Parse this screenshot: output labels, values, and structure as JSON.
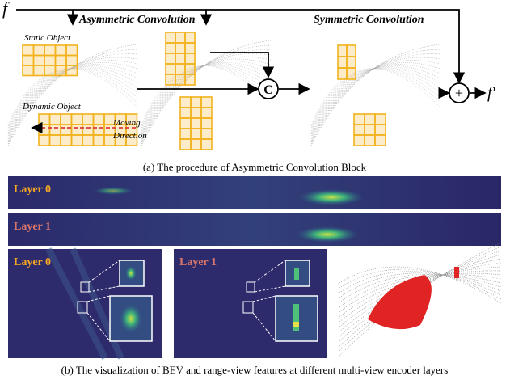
{
  "panel_a": {
    "input_label": "f",
    "output_label": "f′",
    "asymmetric_title": "Asymmetric Convolution",
    "symmetric_title": "Symmetric Convolution",
    "static_label": "Static Object",
    "dynamic_label": "Dynamic Object",
    "moving_label": [
      "Moving",
      "Direction"
    ],
    "concat_symbol": "C",
    "add_symbol": "+",
    "caption": "(a) The procedure of Asymmetric Convolution Block"
  },
  "panel_b": {
    "range_views": [
      {
        "label": "Layer 0"
      },
      {
        "label": "Layer 1"
      }
    ],
    "bev_views": [
      {
        "label": "Layer 0"
      },
      {
        "label": "Layer 1"
      }
    ],
    "caption": "(b) The visualization of BEV and range-view features at different multi-view encoder layers"
  }
}
